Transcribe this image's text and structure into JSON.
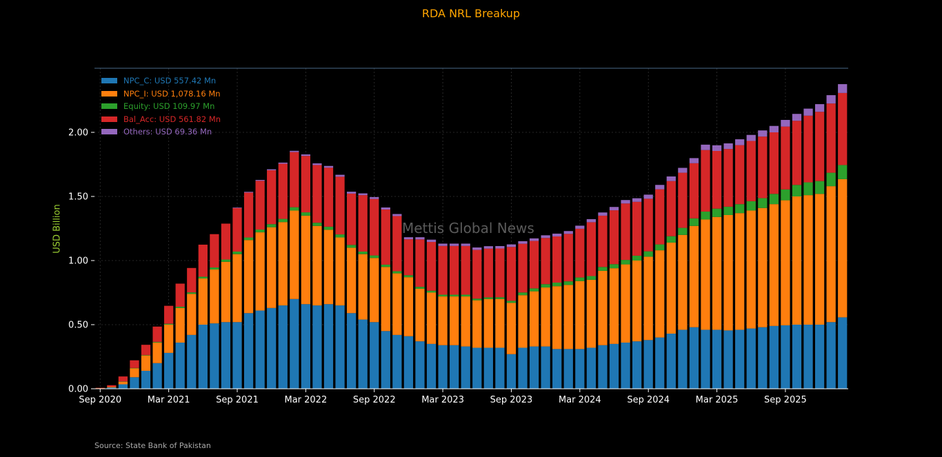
{
  "colors": {
    "title": "#ffa500",
    "ylabel": "#9acd32",
    "background": "#000000",
    "axis": "#ffffff",
    "top_rule": "#4a6a8a"
  },
  "source": "Source: State Bank of Pakistan",
  "watermark": "Mettis Global News",
  "chart_data": {
    "type": "bar",
    "stacked": true,
    "title": "RDA NRL Breakup",
    "xlabel": "",
    "ylabel": "USD Billion",
    "ylim": [
      0,
      2.5
    ],
    "yticks": [
      "0.00",
      "0.50",
      "1.00",
      "1.50",
      "2.00"
    ],
    "ytick_values": [
      0,
      0.5,
      1.0,
      1.5,
      2.0
    ],
    "grid": true,
    "legend_position": "top-left",
    "xtick_labels": [
      {
        "index": 0,
        "label": "Sep 2020"
      },
      {
        "index": 6,
        "label": "Mar 2021"
      },
      {
        "index": 12,
        "label": "Sep 2021"
      },
      {
        "index": 18,
        "label": "Mar 2022"
      },
      {
        "index": 24,
        "label": "Sep 2022"
      },
      {
        "index": 30,
        "label": "Mar 2023"
      },
      {
        "index": 36,
        "label": "Sep 2023"
      },
      {
        "index": 42,
        "label": "Mar 2024"
      },
      {
        "index": 48,
        "label": "Sep 2024"
      },
      {
        "index": 54,
        "label": "Mar 2025"
      },
      {
        "index": 60,
        "label": "Sep 2025"
      }
    ],
    "categories": [
      "Sep 2020",
      "Oct 2020",
      "Nov 2020",
      "Dec 2020",
      "Jan 2021",
      "Feb 2021",
      "Mar 2021",
      "Apr 2021",
      "May 2021",
      "Jun 2021",
      "Jul 2021",
      "Aug 2021",
      "Sep 2021",
      "Oct 2021",
      "Nov 2021",
      "Dec 2021",
      "Jan 2022",
      "Feb 2022",
      "Mar 2022",
      "Apr 2022",
      "May 2022",
      "Jun 2022",
      "Jul 2022",
      "Aug 2022",
      "Sep 2022",
      "Oct 2022",
      "Nov 2022",
      "Dec 2022",
      "Jan 2023",
      "Feb 2023",
      "Mar 2023",
      "Apr 2023",
      "May 2023",
      "Jun 2023",
      "Jul 2023",
      "Aug 2023",
      "Sep 2023",
      "Oct 2023",
      "Nov 2023",
      "Dec 2023",
      "Jan 2024",
      "Feb 2024",
      "Mar 2024",
      "Apr 2024",
      "May 2024",
      "Jun 2024",
      "Jul 2024",
      "Aug 2024",
      "Sep 2024",
      "Oct 2024",
      "Nov 2024",
      "Dec 2024",
      "Jan 2025",
      "Feb 2025",
      "Mar 2025",
      "Apr 2025",
      "May 2025",
      "Jun 2025",
      "Jul 2025",
      "Aug 2025",
      "Sep 2025",
      "Oct 2025",
      "Nov 2025",
      "Dec 2025",
      "Jan 2026",
      "Feb 2026"
    ],
    "series": [
      {
        "name": "NPC_C: USD 557.42 Mn",
        "color": "#1f77b4",
        "values": [
          0.003,
          0.01,
          0.035,
          0.09,
          0.14,
          0.2,
          0.28,
          0.36,
          0.42,
          0.5,
          0.51,
          0.52,
          0.52,
          0.59,
          0.61,
          0.63,
          0.65,
          0.7,
          0.66,
          0.65,
          0.66,
          0.65,
          0.59,
          0.54,
          0.52,
          0.45,
          0.42,
          0.41,
          0.37,
          0.35,
          0.34,
          0.34,
          0.33,
          0.32,
          0.32,
          0.32,
          0.27,
          0.32,
          0.33,
          0.33,
          0.31,
          0.31,
          0.31,
          0.32,
          0.34,
          0.35,
          0.36,
          0.37,
          0.38,
          0.4,
          0.43,
          0.46,
          0.48,
          0.46,
          0.46,
          0.455,
          0.46,
          0.47,
          0.48,
          0.49,
          0.495,
          0.5,
          0.5,
          0.5,
          0.52,
          0.557
        ]
      },
      {
        "name": "NPC_I: USD 1,078.16 Mn",
        "color": "#ff7f0e",
        "values": [
          0.002,
          0.006,
          0.02,
          0.07,
          0.12,
          0.16,
          0.22,
          0.27,
          0.32,
          0.36,
          0.42,
          0.47,
          0.53,
          0.57,
          0.61,
          0.63,
          0.65,
          0.69,
          0.69,
          0.62,
          0.58,
          0.53,
          0.51,
          0.51,
          0.5,
          0.5,
          0.48,
          0.46,
          0.41,
          0.4,
          0.38,
          0.38,
          0.39,
          0.37,
          0.38,
          0.38,
          0.4,
          0.41,
          0.43,
          0.46,
          0.49,
          0.5,
          0.53,
          0.53,
          0.58,
          0.59,
          0.61,
          0.63,
          0.65,
          0.68,
          0.71,
          0.74,
          0.79,
          0.86,
          0.88,
          0.9,
          0.91,
          0.92,
          0.93,
          0.95,
          0.975,
          1.0,
          1.01,
          1.02,
          1.06,
          1.078
        ]
      },
      {
        "name": "Equity: USD 109.97 Mn",
        "color": "#2ca02c",
        "values": [
          0,
          0,
          0.001,
          0.002,
          0.003,
          0.005,
          0.007,
          0.01,
          0.012,
          0.014,
          0.016,
          0.018,
          0.02,
          0.02,
          0.022,
          0.024,
          0.025,
          0.026,
          0.026,
          0.025,
          0.024,
          0.024,
          0.022,
          0.02,
          0.02,
          0.018,
          0.017,
          0.016,
          0.015,
          0.015,
          0.014,
          0.014,
          0.014,
          0.013,
          0.013,
          0.014,
          0.016,
          0.021,
          0.023,
          0.026,
          0.028,
          0.028,
          0.028,
          0.029,
          0.03,
          0.032,
          0.035,
          0.038,
          0.042,
          0.046,
          0.05,
          0.055,
          0.059,
          0.062,
          0.065,
          0.065,
          0.07,
          0.073,
          0.077,
          0.08,
          0.085,
          0.09,
          0.1,
          0.1,
          0.105,
          0.11
        ]
      },
      {
        "name": "Bal_Acc: USD 561.82 Mn",
        "color": "#d62728",
        "values": [
          0.002,
          0.012,
          0.04,
          0.06,
          0.08,
          0.12,
          0.14,
          0.18,
          0.19,
          0.25,
          0.26,
          0.28,
          0.34,
          0.35,
          0.38,
          0.42,
          0.43,
          0.43,
          0.44,
          0.45,
          0.46,
          0.45,
          0.4,
          0.44,
          0.44,
          0.43,
          0.43,
          0.28,
          0.37,
          0.38,
          0.38,
          0.38,
          0.38,
          0.38,
          0.38,
          0.38,
          0.42,
          0.38,
          0.37,
          0.36,
          0.36,
          0.37,
          0.38,
          0.42,
          0.4,
          0.42,
          0.44,
          0.42,
          0.41,
          0.43,
          0.43,
          0.43,
          0.43,
          0.48,
          0.45,
          0.45,
          0.46,
          0.47,
          0.48,
          0.48,
          0.49,
          0.5,
          0.52,
          0.54,
          0.54,
          0.562
        ]
      },
      {
        "name": "Others: USD 69.36 Mn",
        "color": "#9467bd",
        "values": [
          0,
          0,
          0,
          0,
          0,
          0,
          0,
          0,
          0,
          0,
          0,
          0,
          0.004,
          0.006,
          0.007,
          0.008,
          0.009,
          0.01,
          0.012,
          0.013,
          0.014,
          0.015,
          0.015,
          0.014,
          0.015,
          0.016,
          0.016,
          0.016,
          0.017,
          0.018,
          0.018,
          0.018,
          0.018,
          0.019,
          0.019,
          0.019,
          0.02,
          0.02,
          0.02,
          0.021,
          0.022,
          0.022,
          0.024,
          0.024,
          0.025,
          0.026,
          0.027,
          0.028,
          0.032,
          0.034,
          0.036,
          0.038,
          0.04,
          0.042,
          0.044,
          0.044,
          0.046,
          0.047,
          0.048,
          0.05,
          0.052,
          0.054,
          0.055,
          0.06,
          0.065,
          0.069
        ]
      }
    ]
  }
}
